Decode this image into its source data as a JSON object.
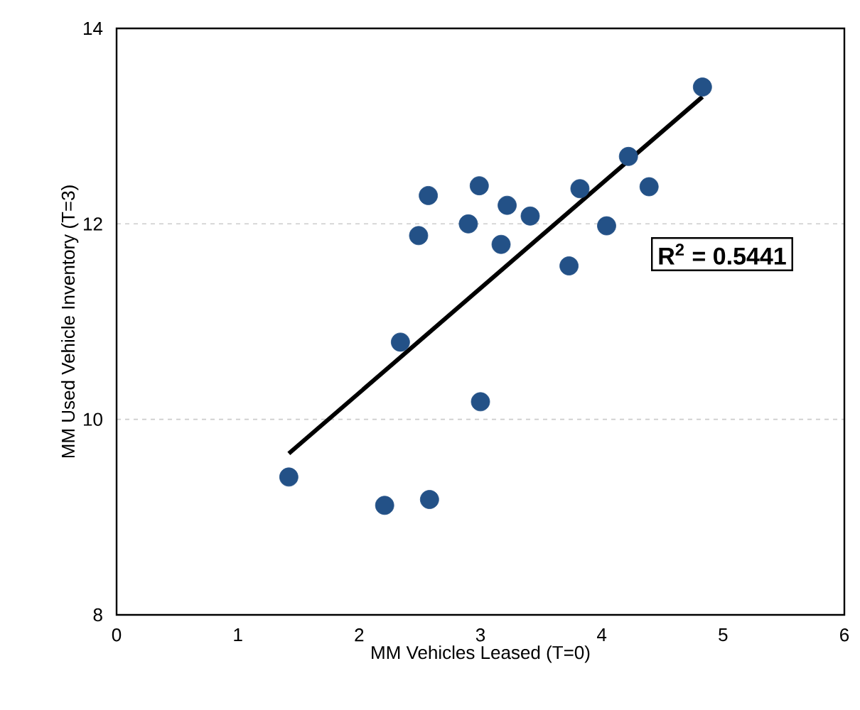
{
  "chart_data": {
    "type": "scatter",
    "xlabel": "MM Vehicles Leased (T=0)",
    "ylabel": "MM Used Vehicle Inventory (T=3)",
    "xlim": [
      0,
      6
    ],
    "xticks": [
      0,
      1,
      2,
      3,
      4,
      5,
      6
    ],
    "ylim": [
      8,
      14
    ],
    "yticks": [
      8,
      10,
      12,
      14
    ],
    "grid": "y",
    "annotations": [
      "R$^{2}$ = 0.5441"
    ],
    "series": [
      {
        "marker": "circle",
        "color": "#235187",
        "x": [
          1.42,
          2.21,
          2.58,
          2.34,
          3.0,
          2.49,
          2.57,
          2.9,
          2.99,
          3.17,
          3.22,
          3.41,
          3.73,
          3.82,
          4.04,
          4.22,
          4.39,
          4.83
        ],
        "values": [
          9.41,
          9.12,
          9.18,
          10.79,
          10.18,
          11.88,
          12.29,
          12.0,
          12.39,
          11.79,
          12.19,
          12.08,
          11.57,
          12.36,
          11.98,
          12.69,
          12.38,
          13.4
        ]
      },
      {
        "type": "line",
        "marker": "none",
        "color": "#000000",
        "x": [
          1.42,
          4.83
        ],
        "values": [
          9.65,
          13.3
        ]
      }
    ]
  }
}
